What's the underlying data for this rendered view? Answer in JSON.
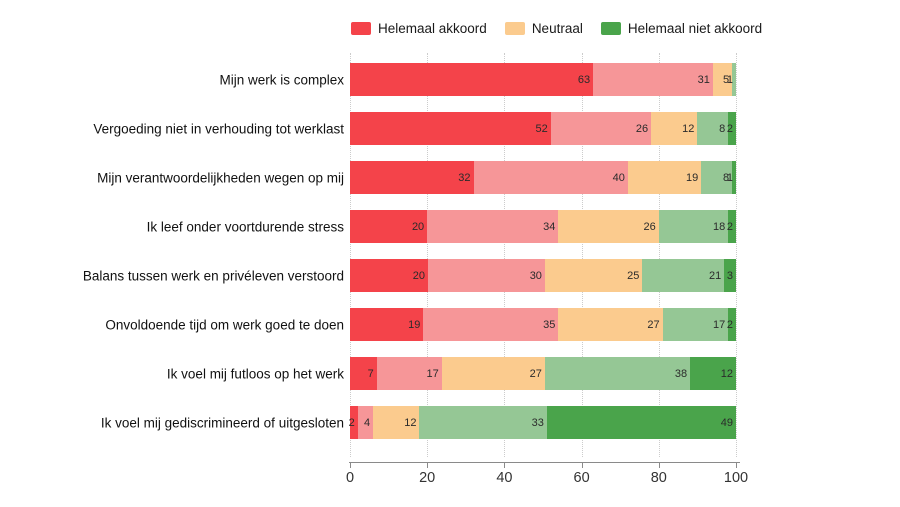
{
  "chart_data": {
    "type": "bar",
    "orientation": "horizontal",
    "stacked": true,
    "title": "",
    "xlabel": "",
    "ylabel": "",
    "xlim": [
      0,
      100
    ],
    "x_ticks": [
      0,
      20,
      40,
      60,
      80,
      100
    ],
    "grid": "vertical-dotted",
    "legend_position": "top",
    "value_labels": "inside-end",
    "categories": [
      "Mijn werk is complex",
      "Vergoeding niet in verhouding tot werklast",
      "Mijn verantwoordelijkheden wegen op mij",
      "Ik leef onder voortdurende stress",
      "Balans tussen werk en privéleven verstoord",
      "Onvoldoende tijd om werk goed te doen",
      "Ik voel mij futloos op het werk",
      "Ik voel mij gediscrimineerd of uitgesloten"
    ],
    "series": [
      {
        "name": "Helemaal akkoord",
        "in_legend": true,
        "color": "#f4434a",
        "values": [
          63,
          52,
          32,
          20,
          20,
          19,
          7,
          2
        ]
      },
      {
        "name": "",
        "in_legend": false,
        "color": "#f69698",
        "values": [
          31,
          26,
          40,
          34,
          30,
          35,
          17,
          4
        ]
      },
      {
        "name": "Neutraal",
        "in_legend": true,
        "color": "#fbcb8e",
        "values": [
          5,
          12,
          19,
          26,
          25,
          27,
          27,
          12
        ]
      },
      {
        "name": "",
        "in_legend": false,
        "color": "#95c795",
        "values": [
          1,
          8,
          8,
          18,
          21,
          17,
          38,
          33
        ]
      },
      {
        "name": "Helemaal niet akkoord",
        "in_legend": true,
        "color": "#4aa44b",
        "values": [
          0,
          2,
          1,
          2,
          3,
          2,
          12,
          49
        ]
      }
    ]
  },
  "legend": {
    "items": [
      {
        "label": "Helemaal akkoord",
        "color": "#f4434a"
      },
      {
        "label": "Neutraal",
        "color": "#fbcb8e"
      },
      {
        "label": "Helemaal niet akkoord",
        "color": "#4aa44b"
      }
    ]
  },
  "colors": {
    "axis_line": "#8a8a8a",
    "gridline": "#cccccc",
    "value_label_text": "#2b2b2b",
    "category_label_text": "#111111"
  }
}
